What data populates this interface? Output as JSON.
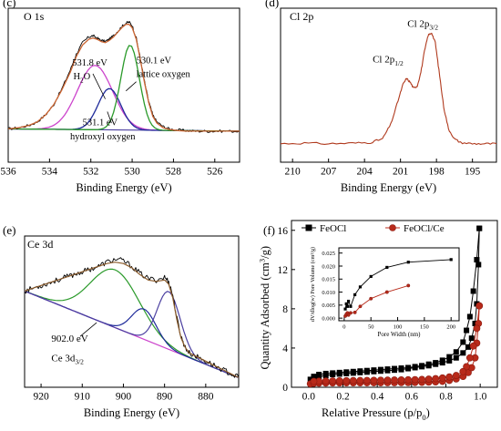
{
  "chart_data": [
    {
      "id": "c",
      "panel_label": "(c)",
      "title": "O 1s",
      "type": "line",
      "xlabel": "Binding Energy (eV)",
      "ylabel": "",
      "xlim": [
        536,
        524.8
      ],
      "ylim": [
        0,
        1
      ],
      "x_reversed": true,
      "xticks": [
        536,
        534,
        532,
        530,
        528,
        526
      ],
      "raw": {
        "color": "#000000",
        "x": [
          536,
          535.5,
          535,
          534.6,
          534.2,
          533.8,
          533.4,
          533.0,
          532.7,
          532.4,
          532.1,
          531.9,
          531.7,
          531.5,
          531.3,
          531.1,
          530.9,
          530.7,
          530.5,
          530.3,
          530.15,
          530.0,
          529.8,
          529.6,
          529.4,
          529.2,
          529.0,
          528.8,
          528.5,
          528.2,
          527.8,
          527.4,
          527.0,
          526.5,
          526.0,
          525.5,
          524.8
        ],
        "y": [
          0.07,
          0.08,
          0.1,
          0.13,
          0.19,
          0.28,
          0.42,
          0.58,
          0.72,
          0.82,
          0.87,
          0.88,
          0.86,
          0.84,
          0.83,
          0.85,
          0.88,
          0.92,
          0.96,
          0.99,
          1.0,
          0.97,
          0.86,
          0.68,
          0.48,
          0.31,
          0.19,
          0.13,
          0.09,
          0.07,
          0.06,
          0.055,
          0.05,
          0.05,
          0.05,
          0.05,
          0.05
        ]
      },
      "envelope": {
        "color": "#cc6633",
        "x": [
          536,
          535.5,
          535,
          534.6,
          534.2,
          533.8,
          533.4,
          533.0,
          532.7,
          532.4,
          532.1,
          531.9,
          531.7,
          531.5,
          531.3,
          531.1,
          530.9,
          530.7,
          530.5,
          530.3,
          530.15,
          530.0,
          529.8,
          529.6,
          529.4,
          529.2,
          529.0,
          528.8,
          528.5,
          528.2,
          527.8,
          527.4,
          527.0,
          526.5,
          526.0,
          525.5,
          524.8
        ],
        "y": [
          0.07,
          0.08,
          0.1,
          0.13,
          0.19,
          0.28,
          0.41,
          0.56,
          0.7,
          0.8,
          0.85,
          0.86,
          0.85,
          0.83,
          0.82,
          0.84,
          0.87,
          0.91,
          0.95,
          0.98,
          0.98,
          0.95,
          0.85,
          0.67,
          0.47,
          0.3,
          0.18,
          0.12,
          0.08,
          0.065,
          0.055,
          0.05,
          0.05,
          0.05,
          0.05,
          0.05,
          0.05
        ]
      },
      "baseline": {
        "color": "#4b3fa0",
        "x": [
          536,
          524.8
        ],
        "y": [
          0.07,
          0.05
        ]
      },
      "components": [
        {
          "center": 531.8,
          "height": 0.56,
          "width": 0.85,
          "color": "#cc44cc"
        },
        {
          "center": 531.1,
          "height": 0.36,
          "width": 0.55,
          "color": "#1e2a9a"
        },
        {
          "center": 530.1,
          "height": 0.74,
          "width": 0.45,
          "color": "#2a9a2a"
        }
      ],
      "annotations": [
        {
          "text": "531.8 eV",
          "x": 532.9,
          "y": 0.62
        },
        {
          "text": "530.1 eV",
          "x": 529.8,
          "y": 0.64
        },
        {
          "text": "lattice oxygen",
          "x": 529.8,
          "y": 0.52
        },
        {
          "text": "531.1 eV",
          "x": 532.4,
          "y": 0.1
        },
        {
          "text": "hydroxyl oxygen",
          "x": 533.0,
          "y": -0.02
        }
      ],
      "h2o_label": {
        "main": "H",
        "sub": "2",
        "tail": "O"
      }
    },
    {
      "id": "d",
      "panel_label": "(d)",
      "title": "Cl 2p",
      "type": "line",
      "xlabel": "Binding Energy (eV)",
      "ylabel": "",
      "xlim": [
        211,
        193
      ],
      "ylim": [
        0,
        1
      ],
      "x_reversed": true,
      "xticks": [
        210,
        207,
        204,
        201,
        198,
        195
      ],
      "series": [
        {
          "color": "#b03a1e",
          "x": [
            211,
            209,
            207,
            205,
            203.5,
            202.5,
            201.8,
            201.2,
            200.8,
            200.5,
            200.2,
            199.9,
            199.6,
            199.3,
            199.0,
            198.7,
            198.4,
            198.1,
            197.8,
            197.4,
            197.0,
            196.5,
            196.0,
            195.0,
            194.0,
            193
          ],
          "y": [
            0.1,
            0.105,
            0.1,
            0.105,
            0.11,
            0.14,
            0.26,
            0.45,
            0.58,
            0.63,
            0.6,
            0.55,
            0.57,
            0.68,
            0.85,
            0.98,
            1.0,
            0.92,
            0.7,
            0.4,
            0.22,
            0.14,
            0.11,
            0.1,
            0.1,
            0.1
          ]
        }
      ],
      "labels": [
        {
          "main": "Cl 2p",
          "sub": "1/2",
          "x": 201.5,
          "y": 0.76
        },
        {
          "main": "Cl 2p",
          "sub": "3/2",
          "x": 198.6,
          "y": 1.05
        }
      ]
    },
    {
      "id": "e",
      "panel_label": "(e)",
      "title": "Ce 3d",
      "type": "line",
      "xlabel": "Binding Energy (eV)",
      "ylabel": "",
      "xlim": [
        924,
        872
      ],
      "ylim": [
        0,
        1
      ],
      "x_reversed": true,
      "xticks": [
        920,
        910,
        900,
        890,
        880
      ],
      "raw": {
        "color": "#000000",
        "x": [
          924,
          922,
          920,
          918,
          916,
          914,
          912,
          910,
          908,
          906,
          904,
          902,
          900,
          898,
          896,
          894,
          892,
          890,
          889,
          888,
          887,
          886,
          885,
          884,
          882,
          880,
          878,
          876,
          874,
          872
        ],
        "y": [
          0.75,
          0.77,
          0.79,
          0.81,
          0.83,
          0.85,
          0.87,
          0.89,
          0.91,
          0.93,
          0.96,
          0.98,
          0.97,
          0.93,
          0.88,
          0.84,
          0.83,
          0.85,
          0.82,
          0.72,
          0.55,
          0.42,
          0.34,
          0.3,
          0.27,
          0.24,
          0.21,
          0.18,
          0.15,
          0.12
        ]
      },
      "envelope": {
        "color": "#8a5a2a",
        "x": [
          924,
          922,
          920,
          918,
          916,
          914,
          912,
          910,
          908,
          906,
          904,
          902,
          900,
          898,
          896,
          894,
          892,
          890,
          889,
          888,
          887,
          886,
          885,
          884,
          882,
          880,
          878,
          876,
          874,
          872
        ],
        "y": [
          0.75,
          0.77,
          0.79,
          0.81,
          0.83,
          0.85,
          0.87,
          0.89,
          0.91,
          0.93,
          0.95,
          0.96,
          0.95,
          0.92,
          0.87,
          0.83,
          0.82,
          0.83,
          0.8,
          0.7,
          0.54,
          0.41,
          0.34,
          0.3,
          0.27,
          0.24,
          0.21,
          0.18,
          0.15,
          0.12
        ]
      },
      "baseline": {
        "color": "#cc44cc",
        "x": [
          924,
          872
        ],
        "y": [
          0.75,
          0.12
        ]
      },
      "components": [
        {
          "center": 902.0,
          "height": 0.42,
          "width": 6.0,
          "color": "#2a9a2a"
        },
        {
          "center": 895.0,
          "height": 0.22,
          "width": 3.0,
          "color": "#1e2a9a"
        },
        {
          "center": 889.0,
          "height": 0.42,
          "width": 2.8,
          "color": "#4b3fa0"
        }
      ],
      "annotations": [
        {
          "text": "902.0 eV",
          "x": 917.5,
          "y": 0.38
        }
      ],
      "ce_label": {
        "main": "Ce 3d",
        "sub": "3/2",
        "x": 917.5,
        "y": 0.24
      }
    },
    {
      "id": "f",
      "panel_label": "(f)",
      "type": "line",
      "xlabel": "Relative Pressure (p/p",
      "xlabel_sub": "0",
      "xlabel_tail": ")",
      "ylabel": "Quantity Adsorbed (cm",
      "ylabel_sup": "3",
      "ylabel_tail": "/g)",
      "xlim": [
        -0.1,
        1.1
      ],
      "ylim": [
        0,
        17
      ],
      "xticks": [
        0.0,
        0.2,
        0.4,
        0.6,
        0.8,
        1.0
      ],
      "yticks": [
        0,
        4,
        8,
        12,
        16
      ],
      "legend": {
        "placement": "top"
      },
      "series": [
        {
          "name": "FeOCl",
          "color": "#000000",
          "marker": "square",
          "adsorption": {
            "x": [
              0.01,
              0.03,
              0.06,
              0.1,
              0.14,
              0.18,
              0.22,
              0.26,
              0.3,
              0.34,
              0.38,
              0.42,
              0.46,
              0.5,
              0.54,
              0.58,
              0.62,
              0.66,
              0.7,
              0.74,
              0.78,
              0.82,
              0.86,
              0.9,
              0.93,
              0.95,
              0.97,
              0.98,
              0.99,
              0.995
            ],
            "y": [
              0.8,
              1.0,
              1.1,
              1.2,
              1.3,
              1.35,
              1.4,
              1.45,
              1.5,
              1.55,
              1.6,
              1.65,
              1.7,
              1.75,
              1.8,
              1.9,
              2.0,
              2.1,
              2.2,
              2.35,
              2.5,
              2.7,
              3.0,
              3.5,
              4.1,
              5.0,
              6.5,
              8.5,
              12.5,
              16.2
            ]
          },
          "desorption": {
            "x": [
              0.995,
              0.98,
              0.96,
              0.94,
              0.92,
              0.9,
              0.86,
              0.82,
              0.78,
              0.74,
              0.7,
              0.66,
              0.62,
              0.58,
              0.54,
              0.5,
              0.46,
              0.42,
              0.38,
              0.34,
              0.3,
              0.26,
              0.22,
              0.18,
              0.14,
              0.1,
              0.06,
              0.03
            ],
            "y": [
              16.2,
              13.0,
              9.8,
              7.2,
              5.8,
              4.6,
              3.6,
              3.1,
              2.75,
              2.5,
              2.35,
              2.2,
              2.1,
              2.0,
              1.95,
              1.9,
              1.85,
              1.8,
              1.75,
              1.7,
              1.65,
              1.6,
              1.55,
              1.5,
              1.45,
              1.4,
              1.3,
              1.1
            ]
          }
        },
        {
          "name": "FeOCl/Ce",
          "color": "#b82a1a",
          "marker": "circle",
          "adsorption": {
            "x": [
              0.01,
              0.03,
              0.06,
              0.1,
              0.14,
              0.18,
              0.22,
              0.26,
              0.3,
              0.34,
              0.38,
              0.42,
              0.46,
              0.5,
              0.54,
              0.58,
              0.62,
              0.66,
              0.7,
              0.74,
              0.78,
              0.82,
              0.86,
              0.9,
              0.93,
              0.95,
              0.97,
              0.98,
              0.99,
              0.995
            ],
            "y": [
              0.35,
              0.4,
              0.42,
              0.43,
              0.44,
              0.44,
              0.45,
              0.45,
              0.45,
              0.46,
              0.46,
              0.46,
              0.47,
              0.47,
              0.48,
              0.48,
              0.49,
              0.5,
              0.52,
              0.55,
              0.6,
              0.7,
              0.85,
              1.1,
              1.5,
              2.0,
              3.0,
              4.5,
              6.5,
              8.3
            ]
          },
          "desorption": {
            "x": [
              0.995,
              0.98,
              0.96,
              0.94,
              0.92,
              0.9,
              0.86,
              0.82,
              0.78,
              0.74,
              0.7,
              0.66,
              0.62,
              0.58,
              0.54,
              0.5,
              0.46,
              0.42,
              0.38,
              0.34,
              0.3,
              0.26,
              0.22,
              0.18,
              0.14,
              0.1,
              0.06,
              0.03
            ],
            "y": [
              8.3,
              6.0,
              4.2,
              3.0,
              2.1,
              1.6,
              1.2,
              1.05,
              0.95,
              0.88,
              0.83,
              0.8,
              0.78,
              0.76,
              0.75,
              0.74,
              0.73,
              0.72,
              0.71,
              0.7,
              0.69,
              0.68,
              0.67,
              0.66,
              0.65,
              0.64,
              0.62,
              0.6
            ]
          }
        }
      ],
      "inset": {
        "xlabel": "Pore Width (nm)",
        "ylabel": "dV/dlog(w) Pore Volume (cm³/g)",
        "xlim": [
          -10,
          215
        ],
        "ylim": [
          0,
          0.025
        ],
        "xticks": [
          0,
          50,
          100,
          150,
          200
        ],
        "yticks": [
          0.0,
          0.005,
          0.01,
          0.015,
          0.02,
          0.025
        ],
        "ytick_labels": [
          "0.000",
          "0.005",
          "0.010",
          "0.015",
          "0.020",
          "0.025"
        ],
        "series": [
          {
            "name": "FeOCl",
            "color": "#000000",
            "marker": "square",
            "x": [
              2,
              4,
              6,
              8,
              12,
              20,
              30,
              50,
              80,
              120,
              200
            ],
            "y": [
              0.0035,
              0.0055,
              0.0045,
              0.0065,
              0.0045,
              0.009,
              0.012,
              0.016,
              0.0195,
              0.0215,
              0.0225
            ]
          },
          {
            "name": "FeOCl/Ce",
            "color": "#b82a1a",
            "marker": "circle",
            "x": [
              2,
              4,
              6,
              8,
              12,
              20,
              30,
              50,
              80,
              120
            ],
            "y": [
              0.0008,
              0.0015,
              0.002,
              0.0012,
              0.002,
              0.0022,
              0.0045,
              0.0075,
              0.01,
              0.0125
            ]
          }
        ]
      }
    }
  ]
}
